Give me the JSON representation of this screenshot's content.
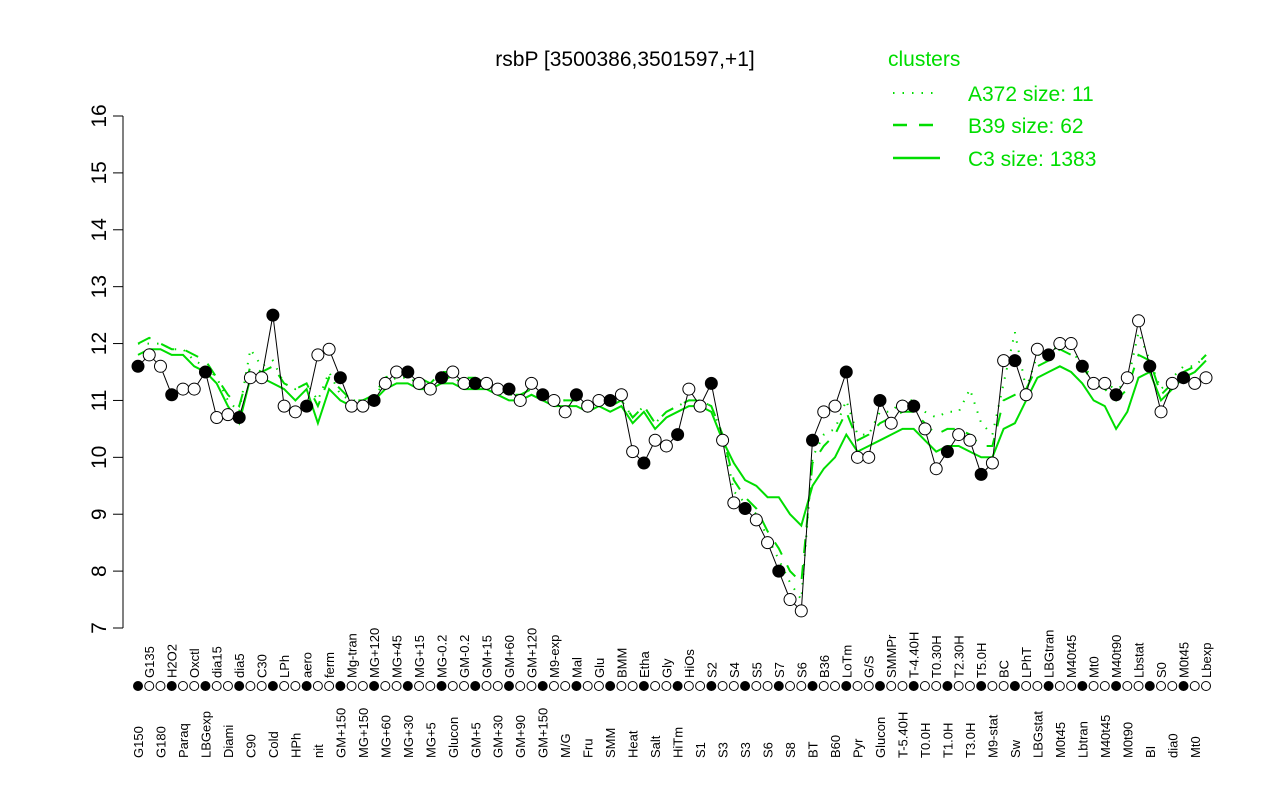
{
  "chart_data": {
    "type": "line",
    "title": "rsbP [3500386,3501597,+1]",
    "xlabel": "",
    "ylabel": "",
    "ylim": [
      7,
      16
    ],
    "yticks": [
      7,
      8,
      9,
      10,
      11,
      12,
      13,
      14,
      15,
      16
    ],
    "grid": false,
    "legend": {
      "title": "clusters",
      "placement": "top-right",
      "entries": [
        {
          "label": "A372 size: 11",
          "style": "dotted"
        },
        {
          "label": "B39 size: 62",
          "style": "dashed"
        },
        {
          "label": "C3 size: 1383",
          "style": "solid"
        }
      ]
    },
    "color": "#00dd00",
    "categories": [
      "G150",
      "G135",
      "G180",
      "H2O2",
      "Paraq",
      "Oxctl",
      "LBGexp",
      "dia15",
      "Diami",
      "dia5",
      "C90",
      "C30",
      "Cold",
      "LPh",
      "HPh",
      "aero",
      "nit",
      "ferm",
      "GM+150",
      "Mg-tran",
      "MG+150",
      "MG+120",
      "MG+60",
      "MG+45",
      "MG+30",
      "MG+15",
      "MG+5",
      "MG-0.2",
      "Glucon",
      "GM-0.2",
      "GM+5",
      "GM+15",
      "GM+30",
      "GM+60",
      "GM+90",
      "GM+120",
      "GM+150",
      "M9-exp",
      "M/G",
      "Mal",
      "Fru",
      "Glu",
      "SMM",
      "BMM",
      "Heat",
      "Etha",
      "Salt",
      "Gly",
      "HiTm",
      "HiOs",
      "S1",
      "S2",
      "S3",
      "S4",
      "S3",
      "S5",
      "S6",
      "S7",
      "S8",
      "S6",
      "BT",
      "B36",
      "B60",
      "LoTm",
      "Pyr",
      "G/S",
      "Glucon",
      "SMMPr",
      "T-5.40H",
      "T-4.40H",
      "T0.0H",
      "T0.30H",
      "T1.0H",
      "T2.30H",
      "T3.0H",
      "T5.0H",
      "M9-stat",
      "BC",
      "Sw",
      "LPhT",
      "LBGstat",
      "LBGtran",
      "M0t45",
      "M40t45",
      "Lbtran",
      "Mt0",
      "M40t45",
      "M40t90",
      "M0t90",
      "Lbstat",
      "BI",
      "S0",
      "dia0",
      "M0t45",
      "Mt0",
      "Lbexp"
    ],
    "points": [
      11.6,
      11.8,
      11.6,
      11.1,
      11.2,
      11.2,
      11.5,
      10.7,
      10.75,
      10.7,
      11.4,
      11.4,
      12.5,
      10.9,
      10.8,
      10.9,
      11.8,
      11.9,
      11.4,
      10.9,
      10.9,
      11.0,
      11.3,
      11.5,
      11.5,
      11.3,
      11.2,
      11.4,
      11.5,
      11.3,
      11.3,
      11.3,
      11.2,
      11.2,
      11.0,
      11.3,
      11.1,
      11.0,
      10.8,
      11.1,
      10.9,
      11.0,
      11.0,
      11.1,
      10.1,
      9.9,
      10.3,
      10.2,
      10.4,
      11.2,
      10.9,
      11.3,
      10.3,
      9.2,
      9.1,
      8.9,
      8.5,
      8.0,
      7.5,
      7.3,
      10.3,
      10.8,
      10.9,
      11.5,
      10.0,
      10.0,
      11.0,
      10.6,
      10.9,
      10.9,
      10.5,
      9.8,
      10.1,
      10.4,
      10.3,
      9.7,
      9.9,
      11.7,
      11.7,
      11.1,
      11.9,
      11.8,
      12.0,
      12.0,
      11.6,
      11.3,
      11.3,
      11.1,
      11.4,
      12.4,
      11.6,
      10.8,
      11.3,
      11.4,
      11.3,
      11.4
    ],
    "series": [
      {
        "name": "C3 size: 1383",
        "values": [
          11.8,
          11.9,
          11.9,
          11.8,
          11.8,
          11.6,
          11.5,
          11.3,
          10.9,
          10.6,
          11.4,
          11.4,
          11.3,
          11.2,
          11.0,
          11.2,
          10.6,
          11.2,
          11.0,
          10.9,
          10.9,
          11.0,
          11.2,
          11.3,
          11.3,
          11.2,
          11.2,
          11.3,
          11.3,
          11.2,
          11.2,
          11.2,
          11.1,
          11.0,
          11.0,
          11.1,
          11.0,
          10.9,
          10.9,
          10.9,
          10.8,
          10.9,
          10.8,
          10.9,
          10.6,
          10.8,
          10.5,
          10.7,
          10.8,
          10.9,
          10.9,
          10.8,
          10.3,
          9.9,
          9.6,
          9.5,
          9.3,
          9.3,
          9.0,
          8.8,
          9.5,
          9.8,
          10.0,
          10.4,
          10.1,
          10.2,
          10.3,
          10.4,
          10.5,
          10.5,
          10.3,
          10.1,
          10.2,
          10.2,
          10.1,
          10.0,
          10.0,
          10.5,
          10.6,
          11.0,
          11.4,
          11.5,
          11.6,
          11.5,
          11.3,
          11.0,
          10.9,
          10.5,
          10.8,
          11.4,
          11.5,
          11.0,
          11.2,
          11.4,
          11.5,
          11.7
        ]
      },
      {
        "name": "B39 size: 62",
        "values": [
          12.0,
          12.1,
          12.0,
          11.9,
          11.9,
          11.8,
          11.7,
          11.4,
          11.1,
          10.9,
          11.6,
          11.5,
          11.6,
          11.3,
          11.2,
          11.3,
          10.9,
          11.4,
          11.2,
          11.0,
          11.0,
          11.1,
          11.4,
          11.5,
          11.5,
          11.4,
          11.3,
          11.5,
          11.5,
          11.4,
          11.4,
          11.3,
          11.2,
          11.1,
          11.1,
          11.2,
          11.1,
          11.0,
          11.0,
          11.0,
          10.9,
          11.0,
          10.9,
          11.0,
          10.7,
          10.9,
          10.6,
          10.8,
          10.9,
          11.0,
          11.0,
          10.9,
          10.4,
          9.6,
          9.3,
          9.1,
          8.7,
          8.4,
          8.0,
          7.8,
          9.9,
          10.2,
          10.4,
          10.8,
          10.3,
          10.4,
          10.6,
          10.7,
          10.8,
          10.8,
          10.6,
          10.4,
          10.5,
          10.5,
          10.4,
          10.2,
          10.2,
          11.0,
          11.1,
          11.2,
          11.6,
          11.7,
          11.9,
          11.8,
          11.6,
          11.3,
          11.2,
          11.0,
          11.2,
          11.8,
          11.7,
          11.1,
          11.3,
          11.5,
          11.6,
          11.8
        ]
      },
      {
        "name": "A372 size: 11",
        "values": [
          12.0,
          12.0,
          12.0,
          11.9,
          11.9,
          11.7,
          11.6,
          11.4,
          11.0,
          10.8,
          11.9,
          11.6,
          11.7,
          11.3,
          11.2,
          11.3,
          11.0,
          11.5,
          11.1,
          11.0,
          11.0,
          11.1,
          11.3,
          11.4,
          11.4,
          11.3,
          11.3,
          11.4,
          11.4,
          11.3,
          11.3,
          11.3,
          11.2,
          11.1,
          11.1,
          11.2,
          11.1,
          11.0,
          11.0,
          11.0,
          10.9,
          11.0,
          10.9,
          11.0,
          10.7,
          10.9,
          10.6,
          10.8,
          10.9,
          11.0,
          11.0,
          10.9,
          10.4,
          9.4,
          9.2,
          9.0,
          8.6,
          8.2,
          7.8,
          7.5,
          10.0,
          10.4,
          10.5,
          11.0,
          10.4,
          10.4,
          10.8,
          10.8,
          11.0,
          11.0,
          10.8,
          10.7,
          10.8,
          10.8,
          11.2,
          10.6,
          10.4,
          11.3,
          12.2,
          11.2,
          11.8,
          11.8,
          12.0,
          11.9,
          11.6,
          11.4,
          11.3,
          11.2,
          11.3,
          12.2,
          11.7,
          11.2,
          11.4,
          11.6,
          11.6,
          11.8
        ]
      }
    ]
  }
}
